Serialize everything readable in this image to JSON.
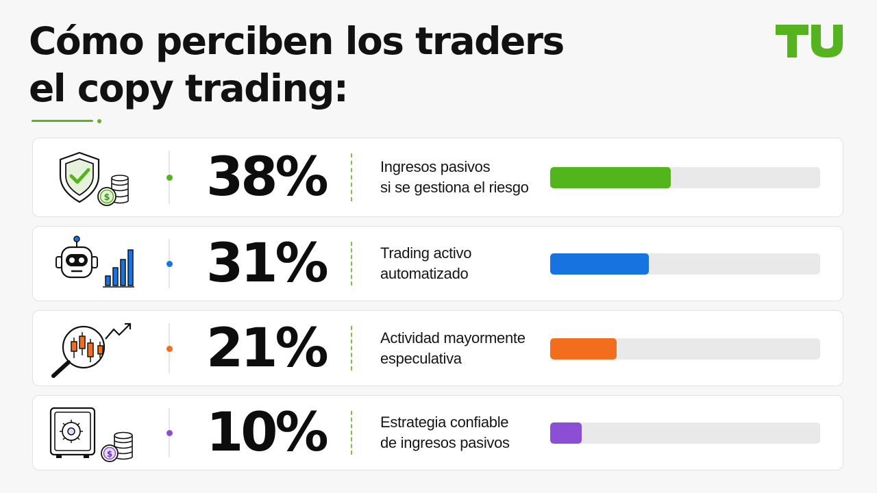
{
  "title": {
    "line1": "Cómo perciben los traders",
    "line2": "el copy trading:"
  },
  "logo": {
    "text": "TU",
    "color": "#55b320"
  },
  "chart_data": {
    "type": "bar",
    "title": "Cómo perciben los traders el copy trading:",
    "categories": [
      "Ingresos pasivos si se gestiona el riesgo",
      "Trading activo automatizado",
      "Actividad mayormente especulativa",
      "Estrategia confiable de ingresos pasivos"
    ],
    "values": [
      38,
      31,
      21,
      10
    ],
    "unit": "%",
    "ylim": [
      0,
      85
    ],
    "orientation": "horizontal",
    "colors": [
      "#52b51c",
      "#1673e0",
      "#f26e1c",
      "#8a4fd4"
    ]
  },
  "rows": [
    {
      "pct": "38%",
      "label1": "Ingresos pasivos",
      "label2": "si se gestiona el riesgo",
      "color": "#52b51c",
      "icon": "shield-check-coins-icon"
    },
    {
      "pct": "31%",
      "label1": "Trading activo",
      "label2": "automatizado",
      "color": "#1673e0",
      "icon": "robot-bar-chart-icon"
    },
    {
      "pct": "21%",
      "label1": "Actividad mayormente",
      "label2": "especulativa",
      "color": "#f26e1c",
      "icon": "magnifier-candlestick-icon"
    },
    {
      "pct": "10%",
      "label1": "Estrategia confiable",
      "label2": "de ingresos pasivos",
      "color": "#8a4fd4",
      "icon": "safe-coins-icon"
    }
  ]
}
